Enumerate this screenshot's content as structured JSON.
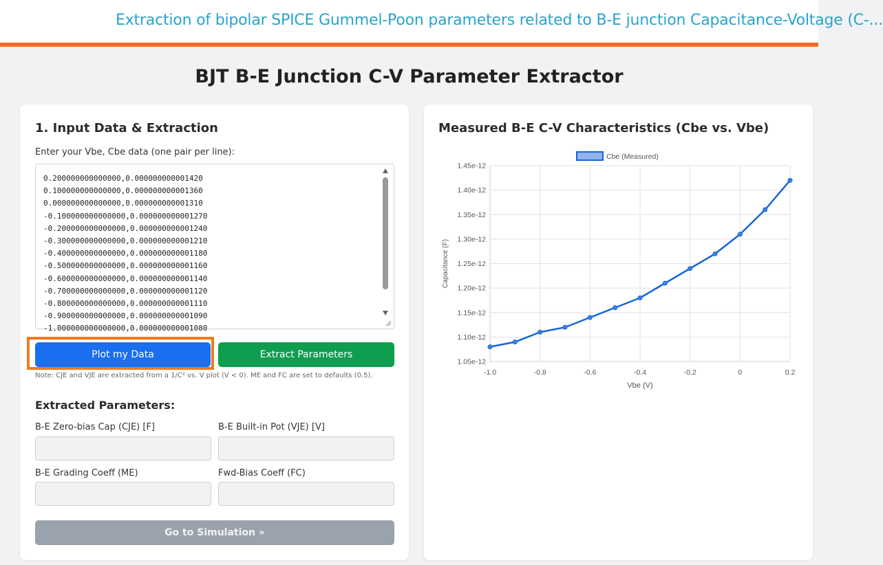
{
  "header": {
    "title": "Extraction of bipolar SPICE Gummel-Poon parameters related to B-E junction Capacitance-Voltage (C-..."
  },
  "page": {
    "title": "BJT B-E Junction C-V Parameter Extractor"
  },
  "input_panel": {
    "heading": "1. Input Data & Extraction",
    "textarea_label": "Enter your Vbe, Cbe data (one pair per line):",
    "data_lines": [
      "0.200000000000000,0.000000000001420",
      "0.100000000000000,0.000000000001360",
      "0.000000000000000,0.000000000001310",
      "-0.100000000000000,0.000000000001270",
      "-0.200000000000000,0.000000000001240",
      "-0.300000000000000,0.000000000001210",
      "-0.400000000000000,0.000000000001180",
      "-0.500000000000000,0.000000000001160",
      "-0.600000000000000,0.000000000001140",
      "-0.700000000000000,0.000000000001120",
      "-0.800000000000000,0.000000000001110",
      "-0.900000000000000,0.000000000001090",
      "-1.000000000000000,0.000000000001080"
    ],
    "plot_button": "Plot my Data",
    "extract_button": "Extract Parameters",
    "note": "Note: CJE and VJE are extracted from a 1/C² vs. V plot (V < 0). ME and FC are set to defaults (0.5)."
  },
  "extracted": {
    "heading": "Extracted Parameters:",
    "cje_label": "B-E Zero-bias Cap (CJE) [F]",
    "vje_label": "B-E Built-in Pot (VJE) [V]",
    "me_label": "B-E Grading Coeff (ME)",
    "fc_label": "Fwd-Bias Coeff (FC)",
    "cje_value": "",
    "vje_value": "",
    "me_value": "",
    "fc_value": "",
    "sim_button": "Go to Simulation »"
  },
  "chart_panel": {
    "heading": "Measured B-E C-V Characteristics (Cbe vs. Vbe)"
  },
  "colors": {
    "accent_orange": "#f26a21",
    "title_blue": "#2aa3cc",
    "plot_blue": "#1a6ef0",
    "extract_green": "#0f9d50",
    "line_blue": "#1565d8"
  },
  "chart_data": {
    "type": "line",
    "title": "",
    "xlabel": "Vbe (V)",
    "ylabel": "Capacitance (F)",
    "series": [
      {
        "name": "Cbe (Measured)",
        "x": [
          -1.0,
          -0.9,
          -0.8,
          -0.7,
          -0.6,
          -0.5,
          -0.4,
          -0.3,
          -0.2,
          -0.1,
          0.0,
          0.1,
          0.2
        ],
        "y": [
          1.08e-12,
          1.09e-12,
          1.11e-12,
          1.12e-12,
          1.14e-12,
          1.16e-12,
          1.18e-12,
          1.21e-12,
          1.24e-12,
          1.27e-12,
          1.31e-12,
          1.36e-12,
          1.42e-12
        ]
      }
    ],
    "xlim": [
      -1.0,
      0.2
    ],
    "ylim": [
      1.05e-12,
      1.45e-12
    ],
    "x_ticks": [
      "-1.0",
      "-0.8",
      "-0.6",
      "-0.4",
      "-0.2",
      "0",
      "0.2"
    ],
    "x_tick_values": [
      -1.0,
      -0.8,
      -0.6,
      -0.4,
      -0.2,
      0.0,
      0.2
    ],
    "y_ticks": [
      "1.05e-12",
      "1.10e-12",
      "1.15e-12",
      "1.20e-12",
      "1.25e-12",
      "1.30e-12",
      "1.35e-12",
      "1.40e-12",
      "1.45e-12"
    ],
    "y_tick_values": [
      1.05e-12,
      1.1e-12,
      1.15e-12,
      1.2e-12,
      1.25e-12,
      1.3e-12,
      1.35e-12,
      1.4e-12,
      1.45e-12
    ],
    "grid": true,
    "legend_position": "top"
  }
}
